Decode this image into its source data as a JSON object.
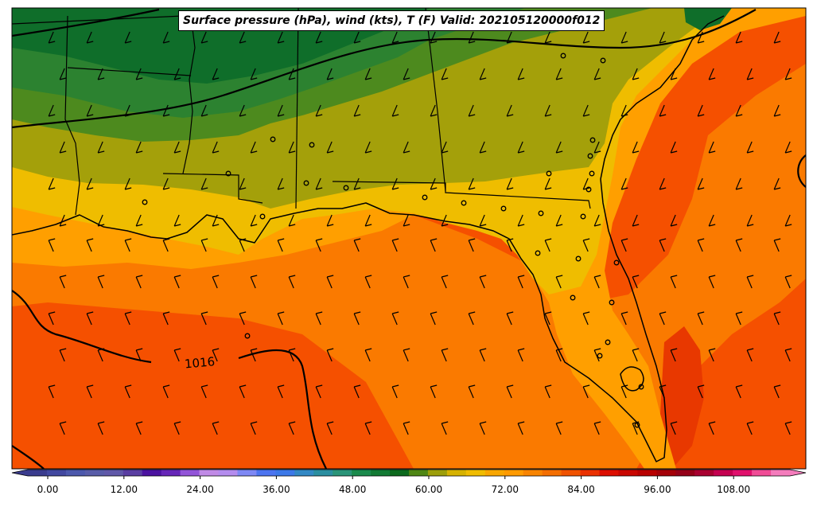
{
  "map": {
    "title": "Surface pressure (hPa), wind (kts), T (F) Valid: 202105120000f012",
    "contour_label": "1016",
    "region_fills": {
      "north_far": "#0f6e2a",
      "north_mid": "#2c8230",
      "north_light": "#4d8a1e",
      "middle": "#a4a00a",
      "south_band": "#efbd00",
      "gulf_light": "#ff9f00",
      "gulf_mid": "#fa7a00",
      "gulf_deep": "#f55000",
      "warm_core": "#e83800"
    }
  },
  "colorbar": {
    "tick_labels": [
      "0.00",
      "12.00",
      "24.00",
      "36.00",
      "48.00",
      "60.00",
      "72.00",
      "84.00",
      "96.00",
      "108.00"
    ],
    "colors": [
      "#3a3c8e",
      "#4248a0",
      "#4c58ac",
      "#585ca8",
      "#6058a8",
      "#5a3ea2",
      "#4b12a0",
      "#6626b8",
      "#9254d8",
      "#c08ae6",
      "#b48cee",
      "#7e88f4",
      "#4c74f0",
      "#3c78e8",
      "#3288c4",
      "#2a8ea0",
      "#2a9478",
      "#1a8a4c",
      "#127a34",
      "#0c6a1e",
      "#4e8614",
      "#9c9e0a",
      "#d6b200",
      "#f0bc00",
      "#f8a600",
      "#ff9a00",
      "#f88400",
      "#f46e00",
      "#f05200",
      "#ea3000",
      "#dc0e00",
      "#c80600",
      "#b80000",
      "#a40008",
      "#940018",
      "#a80030",
      "#c40050",
      "#e0106c",
      "#f04c96",
      "#f47cbc"
    ]
  }
}
